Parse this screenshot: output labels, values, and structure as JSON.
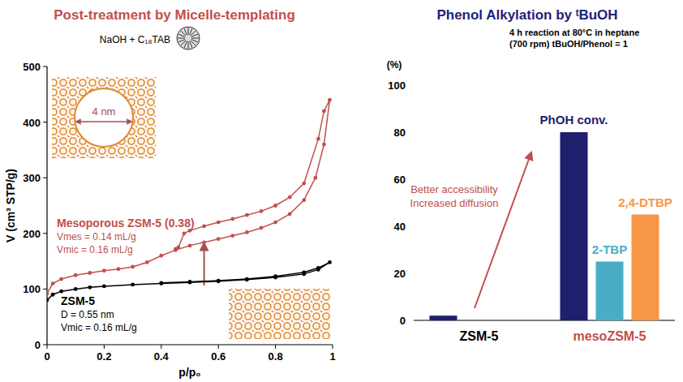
{
  "chart_data": [
    {
      "type": "line",
      "title": "Post-treatment by Micelle-templating",
      "subtitle": "NaOH + C₁₈TAB",
      "x_label": "p/p₀",
      "y_label": "V (cm³ STP/g)",
      "xlim": [
        0,
        1
      ],
      "xticks": [
        0,
        0.2,
        0.4,
        0.6,
        0.8,
        1
      ],
      "ylim": [
        0,
        500
      ],
      "yticks": [
        0,
        100,
        200,
        300,
        400,
        500
      ],
      "marker": "circle",
      "annotations": [
        "4 nm"
      ],
      "series": [
        {
          "name": "Mesoporous ZSM-5 (0.38)",
          "color": "#c0504d",
          "notes": [
            "Vmes = 0.14 mL/g",
            "Vmic = 0.16 mL/g"
          ],
          "x": [
            0,
            0.02,
            0.05,
            0.1,
            0.15,
            0.2,
            0.25,
            0.3,
            0.35,
            0.4,
            0.45,
            0.5,
            0.55,
            0.6,
            0.65,
            0.7,
            0.75,
            0.8,
            0.85,
            0.9,
            0.94,
            0.97,
            0.99,
            0.97,
            0.95,
            0.9,
            0.85,
            0.8,
            0.75,
            0.7,
            0.65,
            0.6,
            0.55,
            0.5,
            0.48,
            0.46,
            0.45
          ],
          "values": [
            92,
            110,
            118,
            125,
            129,
            133,
            136,
            140,
            148,
            160,
            170,
            178,
            184,
            190,
            196,
            202,
            210,
            220,
            235,
            260,
            300,
            360,
            440,
            420,
            370,
            290,
            265,
            250,
            240,
            233,
            226,
            220,
            213,
            205,
            200,
            175,
            172
          ]
        },
        {
          "name": "ZSM-5",
          "color": "#000000",
          "notes": [
            "D = 0.55 nm",
            "Vmic = 0.16 mL/g"
          ],
          "x": [
            0,
            0.02,
            0.05,
            0.1,
            0.15,
            0.2,
            0.3,
            0.4,
            0.5,
            0.6,
            0.7,
            0.8,
            0.9,
            0.95,
            0.99,
            0.95,
            0.9,
            0.8,
            0.7,
            0.6,
            0.5,
            0.4
          ],
          "values": [
            80,
            90,
            96,
            100,
            103,
            105,
            108,
            110,
            112,
            114,
            117,
            121,
            127,
            135,
            148,
            138,
            130,
            123,
            118,
            115,
            113,
            111
          ]
        }
      ]
    },
    {
      "type": "bar",
      "title": "Phenol Alkylation by ᵗBuOH",
      "y_label": "(%)",
      "ylim": [
        0,
        100
      ],
      "yticks": [
        0,
        20,
        40,
        60,
        80,
        100
      ],
      "categories": [
        "ZSM-5",
        "mesoZSM-5"
      ],
      "annotations": [
        "4 h reaction at 80°C in heptane",
        "(700 rpm) tBuOH/Phenol = 1",
        "Better accessibility",
        "Increased diffusion"
      ],
      "series": [
        {
          "name": "PhOH conv.",
          "color": "#1f1f6e",
          "values": [
            2,
            80
          ]
        },
        {
          "name": "2-TBP",
          "color": "#4bacc6",
          "values": [
            0,
            25
          ]
        },
        {
          "name": "2,4-DTBP",
          "color": "#f79646",
          "values": [
            0,
            45
          ]
        }
      ]
    }
  ]
}
